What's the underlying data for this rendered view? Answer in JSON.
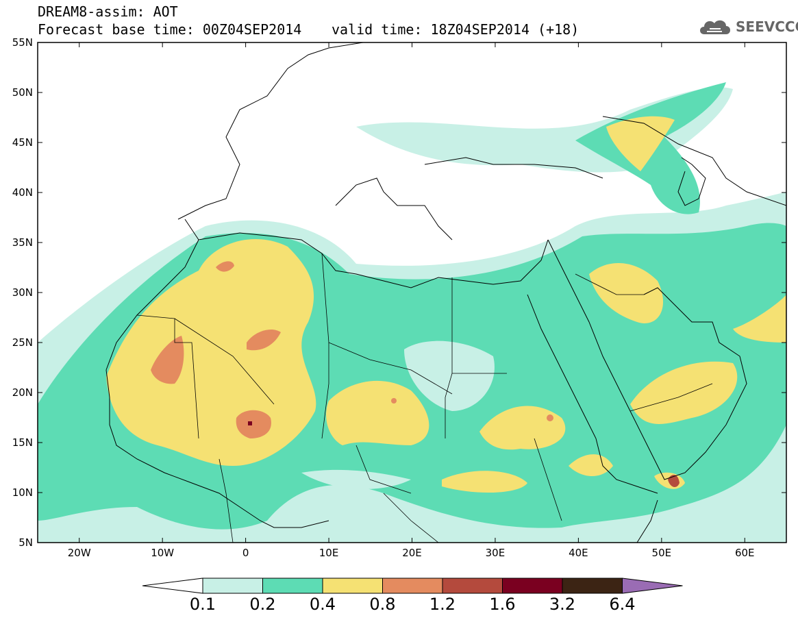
{
  "header": {
    "line1": "DREAM8-assim: AOT",
    "line2": "Forecast base time: 00Z04SEP2014",
    "valid": "valid time: 18Z04SEP2014 (+18)"
  },
  "logo": {
    "text": "SEEVCCC",
    "icon": "cloud-icon",
    "color": "#666666"
  },
  "map": {
    "lat_labels": [
      "55N",
      "50N",
      "45N",
      "40N",
      "35N",
      "30N",
      "25N",
      "20N",
      "15N",
      "10N",
      "5N"
    ],
    "lon_labels": [
      "20W",
      "10W",
      "0",
      "10E",
      "20E",
      "30E",
      "40E",
      "50E",
      "60E"
    ],
    "lat_range": [
      5,
      55
    ],
    "lon_range": [
      -25,
      65
    ]
  },
  "colorbar": {
    "levels": [
      "0.1",
      "0.2",
      "0.4",
      "0.8",
      "1.2",
      "1.6",
      "3.2",
      "6.4"
    ],
    "colors": [
      "#c8f0e6",
      "#5ddcb4",
      "#f5e173",
      "#e48b5f",
      "#b44a3d",
      "#7a0020",
      "#3c2414",
      "#9a6cb4"
    ]
  }
}
